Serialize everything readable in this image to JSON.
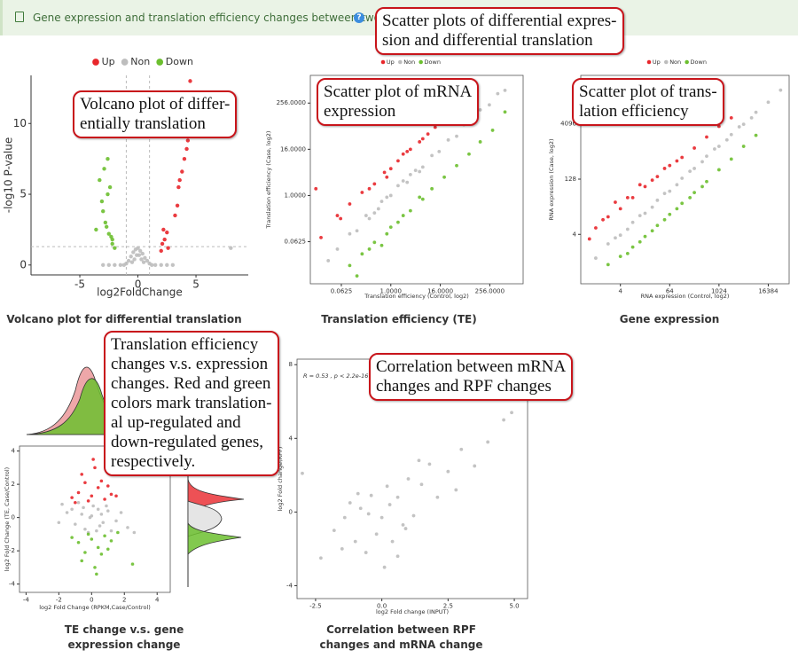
{
  "header": {
    "title": "Gene expression and translation efficiency changes between two groups"
  },
  "callouts": [
    {
      "lines": [
        "Scatter plots of differential expres-",
        "sion and differential translation"
      ]
    },
    {
      "lines": [
        "Volcano plot of differ-",
        "entially translation"
      ]
    },
    {
      "lines": [
        "Scatter plot of mRNA",
        "expression"
      ]
    },
    {
      "lines": [
        "Scatter plot of trans-",
        "lation efficiency"
      ]
    },
    {
      "lines": [
        "Translation efficiency",
        "changes v.s. expression",
        "changes. Red and green",
        "colors mark translation-",
        "al up-regulated and",
        "down-regulated genes,",
        "respectively."
      ]
    },
    {
      "lines": [
        "Correlation between mRNA",
        "changes and RPF changes"
      ]
    }
  ],
  "chart_data": [
    {
      "type": "scatter",
      "title": "Volcano plot for differential translation",
      "xlabel": "log2FoldChange",
      "ylabel": "-log10 P-value",
      "legend": "top",
      "xlim": [
        -9.2,
        9.5
      ],
      "ylim": [
        -0.7,
        13.4
      ],
      "xticks": [
        -5,
        0,
        5
      ],
      "yticks": [
        0,
        5,
        10
      ],
      "vlines": [
        -1,
        1
      ],
      "hlines": [
        1.3
      ],
      "series": [
        {
          "name": "Up",
          "color": "#e8262b",
          "x": [
            2.0,
            2.1,
            2.3,
            2.5,
            2.2,
            2.6,
            3.2,
            3.4,
            3.5,
            3.6,
            3.8,
            4.0,
            4.2,
            4.3,
            4.5
          ],
          "values": [
            1.0,
            1.5,
            1.8,
            2.3,
            2.5,
            1.2,
            3.5,
            4.2,
            5.5,
            6.0,
            6.6,
            7.5,
            8.2,
            8.8,
            13.0
          ]
        },
        {
          "name": "Non",
          "color": "#bdbdbd",
          "x": [
            -3.0,
            -2.5,
            -2.0,
            -1.5,
            -1.2,
            -1.0,
            -0.8,
            -0.6,
            -0.4,
            -0.2,
            0,
            0.2,
            0.4,
            0.6,
            0.8,
            1.0,
            1.2,
            1.5,
            2.0,
            2.5,
            3.0,
            -0.5,
            0.5,
            -0.3,
            0.3,
            -0.1,
            0.1,
            8.0
          ],
          "values": [
            0,
            0,
            0,
            0,
            0,
            0.1,
            0.3,
            0.6,
            0.9,
            1.1,
            1.2,
            1.0,
            0.8,
            0.5,
            0.3,
            0.1,
            0,
            0,
            0,
            0,
            0,
            0.2,
            0.2,
            0.4,
            0.4,
            0.7,
            0.7,
            1.2
          ]
        },
        {
          "name": "Down",
          "color": "#6cbf2f",
          "x": [
            -2.0,
            -2.2,
            -2.3,
            -2.5,
            -2.7,
            -2.8,
            -3.0,
            -3.1,
            -2.6,
            -2.4,
            -3.3,
            -2.9,
            -2.6,
            -2.2,
            -3.6
          ],
          "values": [
            1.2,
            1.5,
            2.0,
            2.2,
            2.7,
            3.0,
            3.8,
            4.5,
            5.0,
            5.5,
            6.0,
            6.8,
            7.5,
            1.8,
            2.5
          ]
        }
      ]
    },
    {
      "type": "scatter",
      "title": "Translation efficiency (TE)",
      "xlabel": "Translation efficiency (Control, log2)",
      "ylabel": "Translation efficiency (Case, log2)",
      "legend": "top",
      "xscale": "log",
      "yscale": "log",
      "xlim": [
        0.011,
        1660
      ],
      "ylim": [
        0.005,
        1350
      ],
      "xticks": [
        0.0625,
        {
          "value": 1,
          "label": "1.0000"
        },
        {
          "value": 16,
          "label": "16.0000"
        },
        {
          "value": 256,
          "label": "256.0000"
        }
      ],
      "yticks": [
        0.0625,
        {
          "value": 1,
          "label": "1.0000"
        },
        {
          "value": 16,
          "label": "16.0000"
        },
        {
          "value": 256,
          "label": "256.0000"
        }
      ],
      "series": [
        {
          "name": "Up",
          "color": "#e8262b",
          "x": [
            0.02,
            0.05,
            0.1,
            0.2,
            0.4,
            0.7,
            1,
            1.5,
            2,
            3,
            5,
            8,
            12,
            20,
            0.3,
            0.8,
            2.5,
            6,
            0.015,
            0.06
          ],
          "values": [
            0.08,
            0.3,
            0.6,
            1.2,
            2,
            4,
            5,
            8,
            12,
            16,
            25,
            40,
            60,
            100,
            1.5,
            3,
            14,
            30,
            1.5,
            0.25
          ]
        },
        {
          "name": "Non",
          "color": "#bdbdbd",
          "x": [
            0.03,
            0.05,
            0.1,
            0.15,
            0.25,
            0.4,
            0.6,
            1,
            1.5,
            2.5,
            4,
            6,
            10,
            15,
            25,
            40,
            60,
            100,
            150,
            250,
            400,
            600,
            0.3,
            0.8,
            2,
            5,
            0.5,
            3
          ],
          "values": [
            0.02,
            0.04,
            0.1,
            0.12,
            0.3,
            0.35,
            0.7,
            1,
            1.8,
            2.2,
            4.5,
            5.5,
            11,
            14,
            28,
            35,
            70,
            90,
            170,
            230,
            450,
            550,
            0.25,
            0.9,
            2.4,
            4.2,
            0.45,
            3.5
          ]
        },
        {
          "name": "Down",
          "color": "#6cbf2f",
          "x": [
            0.1,
            0.2,
            0.4,
            0.8,
            1.5,
            3,
            6,
            10,
            20,
            40,
            80,
            150,
            300,
            600,
            0.3,
            1,
            2,
            5,
            0.15,
            0.6
          ],
          "values": [
            0.015,
            0.03,
            0.06,
            0.1,
            0.2,
            0.4,
            0.8,
            1.5,
            3,
            6,
            12,
            25,
            50,
            150,
            0.04,
            0.15,
            0.3,
            0.9,
            0.008,
            0.05
          ]
        }
      ]
    },
    {
      "type": "scatter",
      "title": "Gene expression",
      "xlabel": "RNA expression (Control, log2)",
      "ylabel": "RNA expression (Case, log2)",
      "legend": "top",
      "xscale": "log",
      "yscale": "log",
      "xlim": [
        0.43,
        53000
      ],
      "ylim": [
        0.18,
        86000
      ],
      "xticks": [
        4,
        64,
        1024,
        16384
      ],
      "yticks": [
        4,
        128,
        4096
      ],
      "series": [
        {
          "name": "Up",
          "color": "#e8262b",
          "x": [
            1,
            2,
            4,
            8,
            16,
            32,
            64,
            128,
            256,
            512,
            1024,
            2048,
            3,
            6,
            12,
            24,
            48,
            96,
            0.7,
            1.5
          ],
          "values": [
            6,
            12,
            20,
            40,
            80,
            150,
            300,
            500,
            900,
            1800,
            3500,
            6000,
            30,
            40,
            90,
            120,
            250,
            400,
            3,
            10
          ]
        },
        {
          "name": "Non",
          "color": "#bdbdbd",
          "x": [
            1,
            2,
            4,
            8,
            16,
            32,
            64,
            128,
            256,
            512,
            1024,
            2048,
            4096,
            8192,
            16384,
            32768,
            3,
            6,
            12,
            24,
            48,
            96,
            200,
            400,
            800,
            1600,
            3200,
            6400
          ],
          "values": [
            0.9,
            2.2,
            3.8,
            8.5,
            15,
            34,
            60,
            135,
            250,
            540,
            1000,
            2100,
            4000,
            8500,
            16000,
            34000,
            3.2,
            5.5,
            13,
            22,
            52,
            90,
            210,
            380,
            850,
            1500,
            3400,
            6000
          ]
        },
        {
          "name": "Down",
          "color": "#6cbf2f",
          "x": [
            2,
            4,
            8,
            16,
            32,
            64,
            128,
            256,
            512,
            1024,
            2048,
            4096,
            8192,
            6,
            12,
            24,
            48,
            96,
            200,
            400
          ],
          "values": [
            0.6,
            1,
            1.8,
            3.5,
            7,
            14,
            28,
            55,
            110,
            230,
            450,
            1000,
            2000,
            1.2,
            2.5,
            5,
            10,
            20,
            40,
            80
          ]
        }
      ]
    },
    {
      "type": "scatter",
      "title": "TE change v.s. gene expression change",
      "xlabel": "log2 Fold Change (RPKM,Case/Control)",
      "ylabel": "log2 Fold Change (TE, Case/Control)",
      "xlim": [
        -4.4,
        4.8
      ],
      "ylim": [
        -4.5,
        4.3
      ],
      "xticks": [
        -4,
        -2,
        0,
        2,
        4
      ],
      "yticks": [
        -4,
        -2,
        0,
        2,
        4
      ],
      "series": [
        {
          "color": "#e8262b",
          "x": [
            -1.2,
            -0.8,
            -0.4,
            0,
            0.4,
            0.8,
            1.2,
            -0.6,
            0.2,
            0.6,
            -0.2,
            1.0,
            -1.0,
            0.1,
            1.5
          ],
          "values": [
            1.2,
            1.5,
            2.1,
            1.3,
            1.8,
            1.1,
            1.4,
            2.6,
            3.0,
            2.2,
            1.0,
            1.9,
            0.9,
            3.5,
            1.3
          ]
        },
        {
          "color": "#bdbdbd",
          "x": [
            -1.5,
            -1,
            -0.5,
            0,
            0.5,
            1,
            1.5,
            -0.8,
            0.3,
            0.9,
            -0.2,
            0.6,
            -1.2,
            1.8,
            -2,
            2.2,
            0.1,
            -0.4,
            0.4,
            -0.6,
            1.2,
            -1.8,
            0.7,
            -0.1,
            2.6
          ],
          "values": [
            0.3,
            -0.4,
            0.6,
            0.1,
            -0.5,
            0.4,
            -0.2,
            0.9,
            -0.8,
            0.7,
            -0.9,
            0.2,
            0.5,
            0.3,
            -0.3,
            -0.6,
            0.7,
            -0.7,
            0.5,
            0.2,
            -0.8,
            0.8,
            -0.3,
            0,
            -0.9
          ]
        },
        {
          "color": "#6cbf2f",
          "x": [
            -1.2,
            -0.8,
            -0.4,
            0,
            0.4,
            0.8,
            1.2,
            -0.6,
            0.2,
            0.6,
            -0.2,
            1.0,
            1.6,
            0.3,
            2.5
          ],
          "values": [
            -1.2,
            -1.5,
            -2.1,
            -1.3,
            -1.8,
            -1.1,
            -1.4,
            -2.6,
            -3.0,
            -2.2,
            -1.0,
            -1.9,
            -0.9,
            -3.4,
            -2.8
          ]
        }
      ]
    },
    {
      "type": "scatter",
      "title": "Correlation between RPF changes and mRNA change",
      "xlabel": "log2 Fold change (INPUT)",
      "ylabel": "log2 Fold change(RPF)",
      "annotation": "R = 0.53 , p < 2.2e-16",
      "color": "#bdbdbd",
      "xlim": [
        -3.2,
        5.5
      ],
      "ylim": [
        -4.7,
        8.3
      ],
      "xticks": [
        -2.5,
        {
          "value": 0,
          "label": "0.0"
        },
        2.5,
        {
          "value": 5,
          "label": "5.0"
        }
      ],
      "yticks": [
        -4,
        0,
        4,
        8
      ],
      "x": [
        -2.3,
        -1.8,
        -1.5,
        -1.2,
        -1,
        -0.8,
        -0.6,
        -0.4,
        -0.2,
        0,
        0.2,
        0.4,
        0.6,
        0.8,
        1,
        1.2,
        1.5,
        1.8,
        2.1,
        2.5,
        3,
        3.5,
        4,
        4.6,
        -0.5,
        0.3,
        0.9,
        -1.4,
        1.4,
        0.1,
        -0.9,
        0.6,
        2.8,
        -3,
        4.9
      ],
      "values": [
        -2.5,
        -1.0,
        -2.0,
        0.5,
        -1.6,
        0.2,
        -2.2,
        0.9,
        -1.2,
        -0.3,
        1.4,
        -1.6,
        0.8,
        -0.7,
        1.8,
        -0.2,
        1.5,
        2.6,
        0.8,
        2.2,
        3.4,
        2.5,
        3.8,
        5.0,
        -0.1,
        0.4,
        -0.9,
        -0.3,
        2.8,
        -3.0,
        1.0,
        -2.4,
        1.2,
        2.1,
        5.4
      ]
    }
  ]
}
